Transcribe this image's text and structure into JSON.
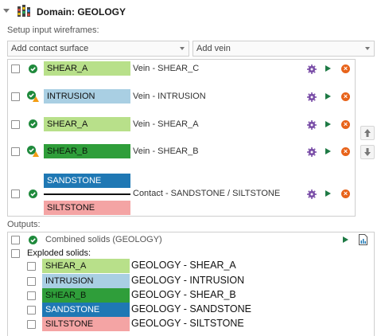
{
  "header": {
    "title": "Domain: GEOLOGY"
  },
  "setup": {
    "label": "Setup input wireframes:",
    "contact_combo": "Add contact surface",
    "vein_combo": "Add vein"
  },
  "rows": [
    {
      "tag": "SHEAR_A",
      "desc": "Vein - SHEAR_C",
      "warn": false
    },
    {
      "tag": "INTRUSION",
      "desc": "Vein - INTRUSION",
      "warn": true
    },
    {
      "tag": "SHEAR_A",
      "desc": "Vein - SHEAR_A",
      "warn": false
    },
    {
      "tag": "SHEAR_B",
      "desc": "Vein - SHEAR_B",
      "warn": true
    }
  ],
  "contact_row": {
    "top_tag": "SANDSTONE",
    "bottom_tag": "SILTSTONE",
    "desc": "Contact - SANDSTONE / SILTSTONE"
  },
  "outputs": {
    "label": "Outputs:",
    "combined": "Combined solids (GEOLOGY)",
    "exploded_label": "Exploded solids:",
    "items": [
      {
        "tag": "SHEAR_A",
        "label": "GEOLOGY - SHEAR_A"
      },
      {
        "tag": "INTRUSION",
        "label": "GEOLOGY - INTRUSION"
      },
      {
        "tag": "SHEAR_B",
        "label": "GEOLOGY - SHEAR_B"
      },
      {
        "tag": "SANDSTONE",
        "label": "GEOLOGY - SANDSTONE"
      },
      {
        "tag": "SILTSTONE",
        "label": "GEOLOGY - SILTSTONE"
      }
    ]
  },
  "colors": {
    "shear_a": "#b8e08a",
    "intrusion": "#a9cfe3",
    "shear_b": "#2f9e3a",
    "sandstone": "#1f78b4",
    "siltstone": "#f4a4a4",
    "accent_green": "#1e7a45",
    "delete_orange": "#e8631a",
    "gear_purple": "#7b4fa8"
  }
}
